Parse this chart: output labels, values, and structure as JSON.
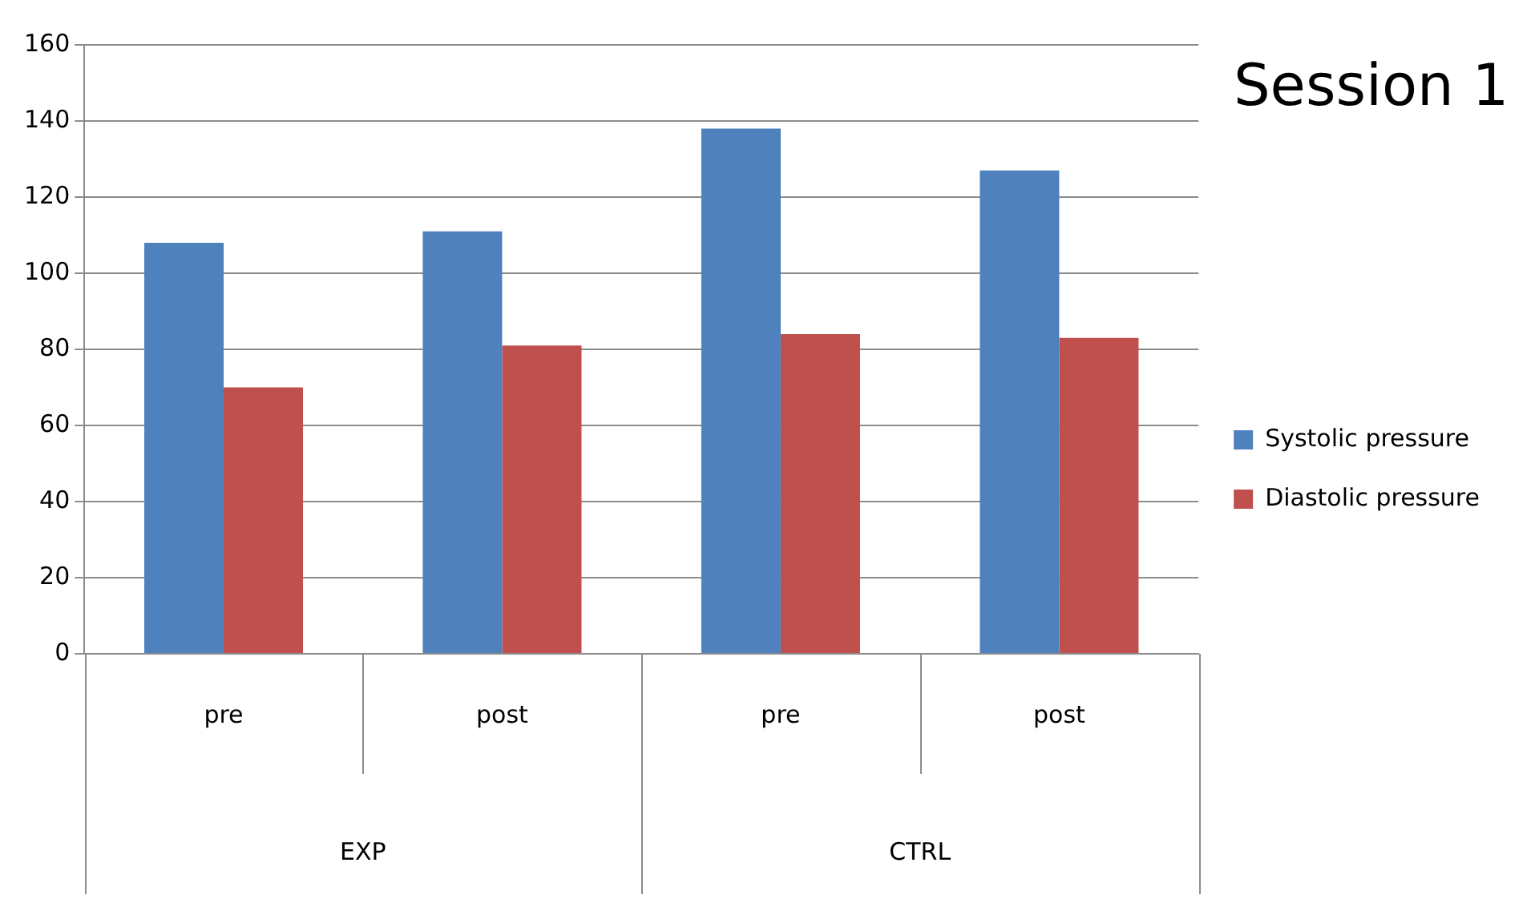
{
  "chart_data": {
    "type": "bar",
    "title": "Session 1",
    "categories": [
      "pre",
      "post",
      "pre",
      "post"
    ],
    "annotations": [
      "EXP",
      "CTRL"
    ],
    "series": [
      {
        "name": "Systolic pressure",
        "color": "#4f81bd",
        "values": [
          108,
          111,
          138,
          127
        ]
      },
      {
        "name": "Diastolic pressure",
        "color": "#c0504d",
        "values": [
          70,
          81,
          84,
          83
        ]
      }
    ],
    "ylim": [
      0,
      160
    ],
    "yticks": [
      0,
      20,
      40,
      60,
      80,
      100,
      120,
      140,
      160
    ],
    "grid": "y",
    "legend": "right"
  }
}
